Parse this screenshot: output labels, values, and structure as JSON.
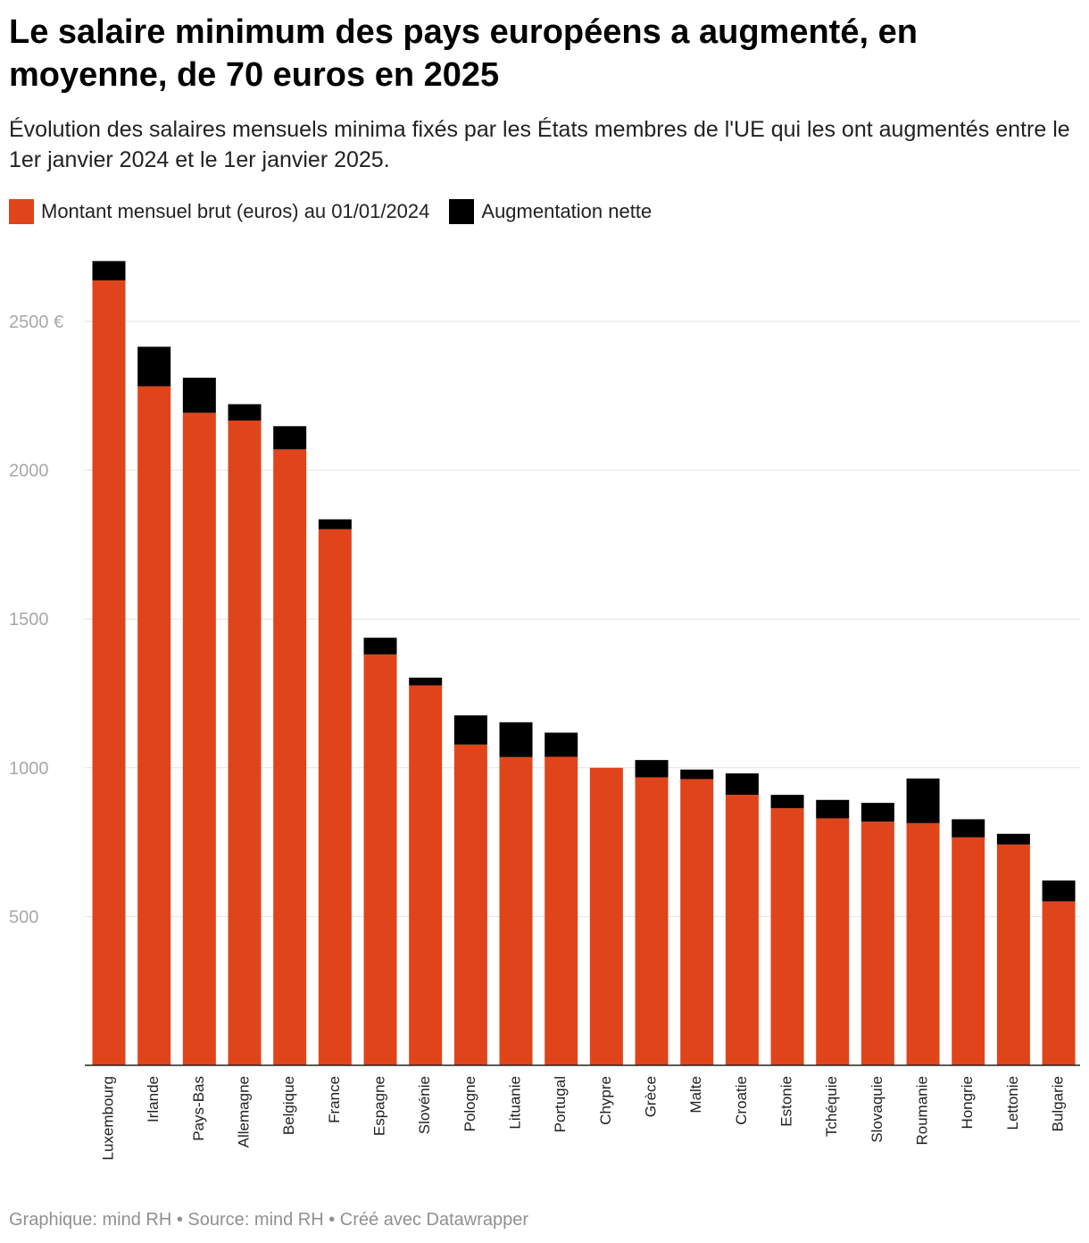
{
  "header": {
    "title": "Le salaire minimum des pays européens a augmenté, en moyenne, de 70 euros en 2025",
    "subtitle": "Évolution des salaires mensuels minima fixés par les États membres de l'UE qui les ont augmentés entre le 1er janvier 2024 et le 1er janvier 2025."
  },
  "legend": {
    "items": [
      {
        "label": "Montant mensuel brut (euros) au 01/01/2024",
        "color": "#e0441a"
      },
      {
        "label": "Augmentation nette",
        "color": "#000000"
      }
    ]
  },
  "footer": {
    "text": "Graphique: mind RH • Source: mind RH • Créé avec Datawrapper"
  },
  "chart_data": {
    "type": "bar",
    "stacked": true,
    "categories": [
      "Luxembourg",
      "Irlande",
      "Pays-Bas",
      "Allemagne",
      "Belgique",
      "France",
      "Espagne",
      "Slovénie",
      "Pologne",
      "Lituanie",
      "Portugal",
      "Chypre",
      "Grèce",
      "Malte",
      "Croatie",
      "Estonie",
      "Tchéquie",
      "Slovaquie",
      "Roumanie",
      "Hongrie",
      "Lettonie",
      "Bulgarie"
    ],
    "series": [
      {
        "name": "Montant mensuel brut (euros) au 01/01/2024",
        "color": "#e0441a",
        "values": [
          2638,
          2282,
          2193,
          2167,
          2070,
          1802,
          1381,
          1277,
          1078,
          1036,
          1037,
          1000,
          968,
          962,
          909,
          864,
          830,
          819,
          814,
          766,
          742,
          551
        ]
      },
      {
        "name": "Augmentation nette",
        "color": "#000000",
        "values": [
          65,
          133,
          118,
          55,
          78,
          33,
          56,
          26,
          98,
          117,
          81,
          0,
          58,
          32,
          72,
          45,
          62,
          63,
          150,
          61,
          36,
          70
        ]
      }
    ],
    "y_ticks": [
      {
        "value": 500,
        "label": "500"
      },
      {
        "value": 1000,
        "label": "1000"
      },
      {
        "value": 1500,
        "label": "1500"
      },
      {
        "value": 2000,
        "label": "2000"
      },
      {
        "value": 2500,
        "label": "2500 €"
      }
    ],
    "ylim": [
      0,
      2750
    ],
    "grid": true,
    "legend_position": "top-left"
  }
}
